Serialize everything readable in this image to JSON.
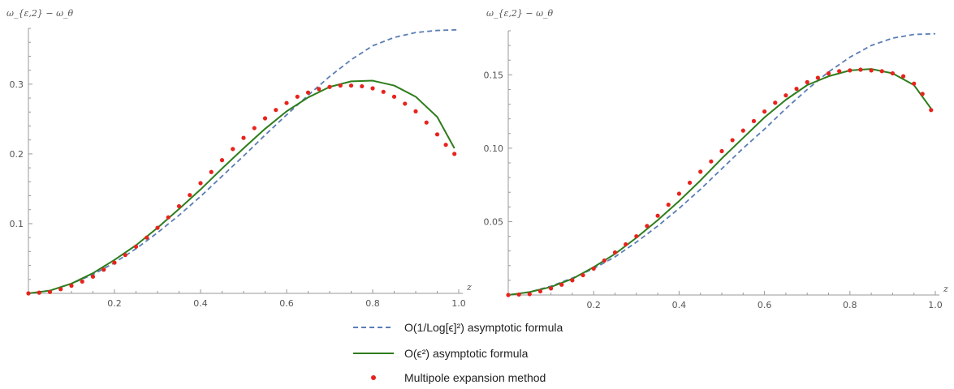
{
  "chart_data": [
    {
      "type": "line",
      "title": "",
      "xlabel": "z",
      "ylabel": "ω_{ε,2} − ω_θ",
      "xlim": [
        0,
        1.0
      ],
      "ylim": [
        0,
        0.38
      ],
      "xticks": [
        0.2,
        0.4,
        0.6,
        0.8,
        1.0
      ],
      "xtick_labels": [
        "0.2",
        "0.4",
        "0.6",
        "0.8",
        "1.0"
      ],
      "yticks": [
        0.1,
        0.2,
        0.3
      ],
      "ytick_labels": [
        "0.1",
        "0.2",
        "0.3"
      ],
      "series": [
        {
          "name": "O(1/Log[ϵ]²) asymptotic formula",
          "style": "dashed",
          "color": "#5b7db5",
          "x": [
            0,
            0.05,
            0.1,
            0.15,
            0.2,
            0.25,
            0.3,
            0.35,
            0.4,
            0.45,
            0.5,
            0.55,
            0.6,
            0.65,
            0.7,
            0.75,
            0.8,
            0.85,
            0.9,
            0.95,
            1.0
          ],
          "y": [
            0,
            0.004,
            0.014,
            0.027,
            0.044,
            0.064,
            0.087,
            0.112,
            0.139,
            0.168,
            0.197,
            0.227,
            0.256,
            0.284,
            0.311,
            0.335,
            0.355,
            0.367,
            0.374,
            0.377,
            0.378
          ]
        },
        {
          "name": "O(ϵ²) asymptotic formula",
          "style": "solid",
          "color": "#2e7d1c",
          "x": [
            0,
            0.05,
            0.1,
            0.15,
            0.2,
            0.25,
            0.3,
            0.35,
            0.4,
            0.45,
            0.5,
            0.55,
            0.6,
            0.65,
            0.7,
            0.75,
            0.8,
            0.85,
            0.9,
            0.95,
            0.99
          ],
          "y": [
            0,
            0.004,
            0.014,
            0.029,
            0.048,
            0.069,
            0.094,
            0.121,
            0.149,
            0.179,
            0.208,
            0.236,
            0.261,
            0.281,
            0.296,
            0.304,
            0.305,
            0.298,
            0.282,
            0.253,
            0.208
          ]
        },
        {
          "name": "Multipole expansion method",
          "style": "points",
          "color": "#e8231d",
          "x": [
            0,
            0.025,
            0.05,
            0.075,
            0.1,
            0.125,
            0.15,
            0.175,
            0.2,
            0.225,
            0.25,
            0.275,
            0.3,
            0.325,
            0.35,
            0.375,
            0.4,
            0.425,
            0.45,
            0.475,
            0.5,
            0.525,
            0.55,
            0.575,
            0.6,
            0.625,
            0.65,
            0.675,
            0.7,
            0.725,
            0.75,
            0.775,
            0.8,
            0.825,
            0.85,
            0.875,
            0.9,
            0.925,
            0.95,
            0.97,
            0.99
          ],
          "y": [
            0,
            0.001,
            0.002,
            0.006,
            0.011,
            0.017,
            0.024,
            0.034,
            0.044,
            0.055,
            0.067,
            0.08,
            0.094,
            0.109,
            0.125,
            0.141,
            0.158,
            0.174,
            0.191,
            0.207,
            0.223,
            0.237,
            0.251,
            0.263,
            0.273,
            0.282,
            0.288,
            0.293,
            0.296,
            0.298,
            0.298,
            0.297,
            0.294,
            0.289,
            0.282,
            0.272,
            0.261,
            0.245,
            0.228,
            0.213,
            0.2
          ]
        }
      ]
    },
    {
      "type": "line",
      "title": "",
      "xlabel": "z",
      "ylabel": "ω_{ε,2} − ω_θ",
      "xlim": [
        0,
        1.0
      ],
      "ylim": [
        0,
        0.18
      ],
      "xticks": [
        0.2,
        0.4,
        0.6,
        0.8,
        1.0
      ],
      "xtick_labels": [
        "0.2",
        "0.4",
        "0.6",
        "0.8",
        "1.0"
      ],
      "yticks": [
        0.05,
        0.1,
        0.15
      ],
      "ytick_labels": [
        "0.05",
        "0.10",
        "0.15"
      ],
      "series": [
        {
          "name": "O(1/Log[ϵ]²) asymptotic formula",
          "style": "dashed",
          "color": "#5b7db5",
          "x": [
            0,
            0.05,
            0.1,
            0.15,
            0.2,
            0.25,
            0.3,
            0.35,
            0.4,
            0.45,
            0.5,
            0.55,
            0.6,
            0.65,
            0.7,
            0.75,
            0.8,
            0.85,
            0.9,
            0.95,
            1.0
          ],
          "y": [
            0,
            0.002,
            0.006,
            0.0115,
            0.018,
            0.026,
            0.036,
            0.047,
            0.059,
            0.072,
            0.086,
            0.1,
            0.113,
            0.127,
            0.14,
            0.152,
            0.162,
            0.17,
            0.175,
            0.1775,
            0.178
          ]
        },
        {
          "name": "O(ϵ²) asymptotic formula",
          "style": "solid",
          "color": "#2e7d1c",
          "x": [
            0,
            0.05,
            0.1,
            0.15,
            0.2,
            0.25,
            0.3,
            0.35,
            0.4,
            0.45,
            0.5,
            0.55,
            0.6,
            0.65,
            0.7,
            0.75,
            0.8,
            0.85,
            0.9,
            0.95,
            0.99
          ],
          "y": [
            0,
            0.002,
            0.0055,
            0.011,
            0.019,
            0.028,
            0.039,
            0.051,
            0.064,
            0.078,
            0.093,
            0.107,
            0.121,
            0.133,
            0.143,
            0.149,
            0.153,
            0.154,
            0.151,
            0.143,
            0.127
          ]
        },
        {
          "name": "Multipole expansion method",
          "style": "points",
          "color": "#e8231d",
          "x": [
            0,
            0.025,
            0.05,
            0.075,
            0.1,
            0.125,
            0.15,
            0.175,
            0.2,
            0.225,
            0.25,
            0.275,
            0.3,
            0.325,
            0.35,
            0.375,
            0.4,
            0.425,
            0.45,
            0.475,
            0.5,
            0.525,
            0.55,
            0.575,
            0.6,
            0.625,
            0.65,
            0.675,
            0.7,
            0.725,
            0.75,
            0.775,
            0.8,
            0.825,
            0.85,
            0.875,
            0.9,
            0.925,
            0.95,
            0.97,
            0.99
          ],
          "y": [
            0,
            0.0003,
            0.0006,
            0.0025,
            0.0045,
            0.007,
            0.01,
            0.0135,
            0.018,
            0.0235,
            0.029,
            0.0345,
            0.04,
            0.047,
            0.054,
            0.0615,
            0.069,
            0.0765,
            0.084,
            0.091,
            0.098,
            0.1055,
            0.112,
            0.1185,
            0.125,
            0.131,
            0.136,
            0.1405,
            0.145,
            0.148,
            0.151,
            0.1525,
            0.153,
            0.1535,
            0.153,
            0.1525,
            0.151,
            0.149,
            0.144,
            0.137,
            0.126
          ]
        }
      ]
    }
  ],
  "legend": {
    "placement": "bottom-center",
    "items": [
      {
        "label": "O(1/Log[ϵ]²) asymptotic formula",
        "style": "dashed",
        "color": "#5b7db5"
      },
      {
        "label": "O(ϵ²) asymptotic formula",
        "style": "solid",
        "color": "#2e7d1c"
      },
      {
        "label": "Multipole expansion method",
        "style": "points",
        "color": "#e8231d"
      }
    ]
  }
}
